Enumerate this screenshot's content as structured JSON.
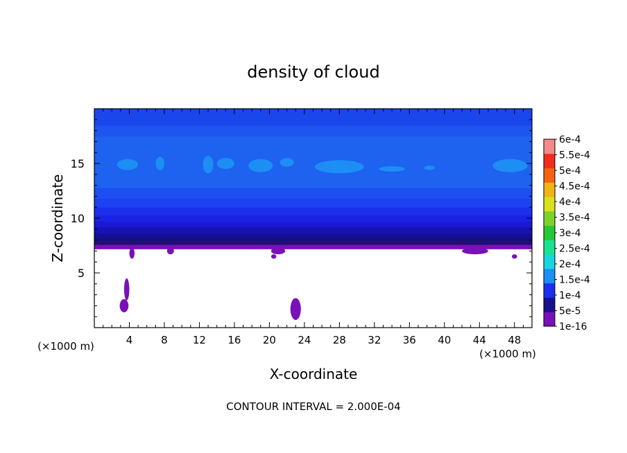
{
  "chart_data": {
    "type": "heatmap",
    "title": "density of cloud",
    "xlabel": "X-coordinate",
    "ylabel": "Z-coordinate",
    "x_unit_label": "(×1000 m)",
    "y_unit_label": "(×1000 m)",
    "footer": "CONTOUR INTERVAL = 2.000E-04",
    "xlim": [
      0,
      50
    ],
    "ylim": [
      0,
      20
    ],
    "x_ticks": [
      4,
      8,
      12,
      16,
      20,
      24,
      28,
      32,
      36,
      40,
      44,
      48
    ],
    "x_tick_labels": [
      "4",
      "8",
      "12",
      "16",
      "20",
      "24",
      "28",
      "32",
      "36",
      "40",
      "44",
      "48"
    ],
    "y_ticks": [
      5,
      10,
      15
    ],
    "y_tick_labels": [
      "5",
      "10",
      "15"
    ],
    "colorbar": {
      "labels": [
        "1e-16",
        "5e-5",
        "1e-4",
        "1.5e-4",
        "2e-4",
        "2.5e-4",
        "3e-4",
        "3.5e-4",
        "4e-4",
        "4.5e-4",
        "5e-4",
        "5.5e-4",
        "6e-4"
      ],
      "colors": [
        "#7a10b8",
        "#18108c",
        "#1a30ee",
        "#1d8ef4",
        "#19d6e0",
        "#18e38f",
        "#26c736",
        "#7dd22a",
        "#d8e21d",
        "#f2b316",
        "#f56312",
        "#f12d1c",
        "#f48a8a"
      ]
    },
    "cloud_layers": [
      {
        "z_bottom": 7.2,
        "z_top": 7.6,
        "color": "#7a10b8"
      },
      {
        "z_bottom": 7.6,
        "z_top": 8.1,
        "color": "#1f0e78"
      },
      {
        "z_bottom": 8.1,
        "z_top": 8.6,
        "color": "#14108e"
      },
      {
        "z_bottom": 8.6,
        "z_top": 9.2,
        "color": "#1812b4"
      },
      {
        "z_bottom": 9.2,
        "z_top": 9.7,
        "color": "#1a18d2"
      },
      {
        "z_bottom": 9.7,
        "z_top": 10.3,
        "color": "#1a22e4"
      },
      {
        "z_bottom": 10.3,
        "z_top": 11.0,
        "color": "#1c30ec"
      },
      {
        "z_bottom": 11.0,
        "z_top": 11.8,
        "color": "#1d40f0"
      },
      {
        "z_bottom": 11.8,
        "z_top": 12.8,
        "color": "#1d4ef2"
      },
      {
        "z_bottom": 12.8,
        "z_top": 17.5,
        "color": "#1e62f0"
      },
      {
        "z_bottom": 17.5,
        "z_top": 18.5,
        "color": "#1d55ee"
      },
      {
        "z_bottom": 18.5,
        "z_top": 20.0,
        "color": "#1b46ec"
      }
    ],
    "high_density_patches": [
      {
        "x": 3.8,
        "z": 14.9,
        "rx": 1.2,
        "rz": 0.5,
        "color": "#1d8ef4"
      },
      {
        "x": 7.5,
        "z": 15.0,
        "rx": 0.5,
        "rz": 0.6,
        "color": "#1d8ef4"
      },
      {
        "x": 13.0,
        "z": 14.9,
        "rx": 0.6,
        "rz": 0.8,
        "color": "#1d8ef4"
      },
      {
        "x": 15.0,
        "z": 15.0,
        "rx": 1.0,
        "rz": 0.5,
        "color": "#1d8ef4"
      },
      {
        "x": 19.0,
        "z": 14.8,
        "rx": 1.4,
        "rz": 0.6,
        "color": "#1d8ef4"
      },
      {
        "x": 22.0,
        "z": 15.1,
        "rx": 0.8,
        "rz": 0.4,
        "color": "#1d8ef4"
      },
      {
        "x": 28.0,
        "z": 14.7,
        "rx": 2.8,
        "rz": 0.6,
        "color": "#1d8ef4"
      },
      {
        "x": 34.0,
        "z": 14.5,
        "rx": 1.5,
        "rz": 0.25,
        "color": "#1d8ef4"
      },
      {
        "x": 38.3,
        "z": 14.6,
        "rx": 0.6,
        "rz": 0.2,
        "color": "#1d8ef4"
      },
      {
        "x": 47.5,
        "z": 14.8,
        "rx": 2.0,
        "rz": 0.6,
        "color": "#1d8ef4"
      }
    ],
    "low_density_patches": [
      {
        "x": 3.4,
        "z": 2.0,
        "rx": 0.5,
        "rz": 0.6,
        "color": "#7a10b8"
      },
      {
        "x": 3.7,
        "z": 3.5,
        "rx": 0.3,
        "rz": 1.0,
        "color": "#7a10b8"
      },
      {
        "x": 4.3,
        "z": 6.8,
        "rx": 0.3,
        "rz": 0.5,
        "color": "#7a10b8"
      },
      {
        "x": 8.7,
        "z": 7.0,
        "rx": 0.4,
        "rz": 0.3,
        "color": "#7a10b8"
      },
      {
        "x": 20.5,
        "z": 6.5,
        "rx": 0.3,
        "rz": 0.2,
        "color": "#7a10b8"
      },
      {
        "x": 21.0,
        "z": 7.0,
        "rx": 0.8,
        "rz": 0.3,
        "color": "#7a10b8"
      },
      {
        "x": 23.0,
        "z": 1.7,
        "rx": 0.6,
        "rz": 1.0,
        "color": "#7a10b8"
      },
      {
        "x": 43.5,
        "z": 7.0,
        "rx": 1.5,
        "rz": 0.3,
        "color": "#7a10b8"
      },
      {
        "x": 48.0,
        "z": 6.5,
        "rx": 0.3,
        "rz": 0.2,
        "color": "#7a10b8"
      }
    ]
  }
}
